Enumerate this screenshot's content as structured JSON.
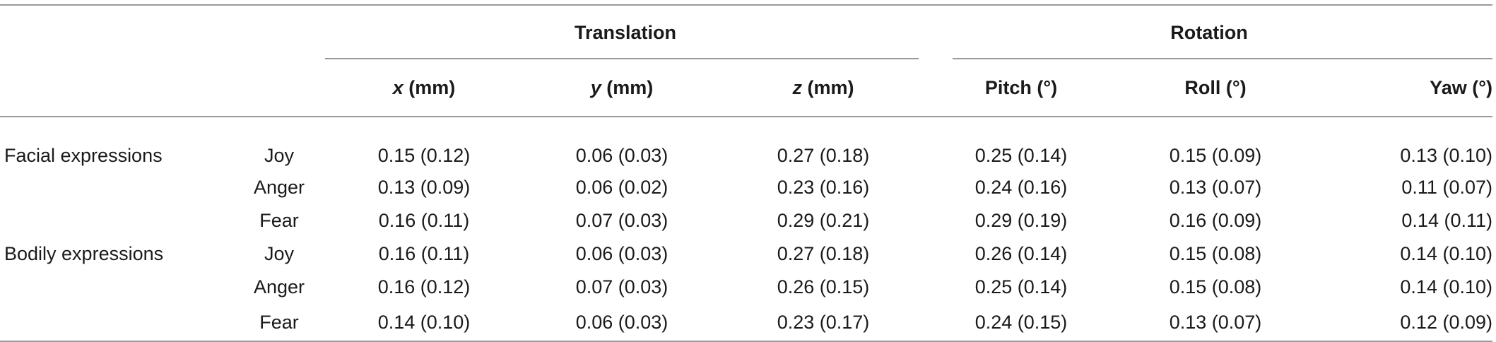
{
  "table": {
    "groups": {
      "translation": "Translation",
      "rotation": "Rotation"
    },
    "columns": [
      {
        "var": "x",
        "unit": " (mm)"
      },
      {
        "var": "y",
        "unit": " (mm)"
      },
      {
        "var": "z",
        "unit": " (mm)"
      },
      {
        "var": "",
        "unit": "Pitch (°)"
      },
      {
        "var": "",
        "unit": "Roll (°)"
      },
      {
        "var": "",
        "unit": "Yaw (°)"
      }
    ],
    "rows": [
      {
        "group": "Facial expressions",
        "emotion": "Joy",
        "values": [
          "0.15 (0.12)",
          "0.06 (0.03)",
          "0.27 (0.18)",
          "0.25 (0.14)",
          "0.15 (0.09)",
          "0.13 (0.10)"
        ]
      },
      {
        "group": "",
        "emotion": "Anger",
        "values": [
          "0.13 (0.09)",
          "0.06 (0.02)",
          "0.23 (0.16)",
          "0.24 (0.16)",
          "0.13 (0.07)",
          "0.11 (0.07)"
        ]
      },
      {
        "group": "",
        "emotion": "Fear",
        "values": [
          "0.16 (0.11)",
          "0.07 (0.03)",
          "0.29 (0.21)",
          "0.29 (0.19)",
          "0.16 (0.09)",
          "0.14 (0.11)"
        ]
      },
      {
        "group": "Bodily expressions",
        "emotion": "Joy",
        "values": [
          "0.16 (0.11)",
          "0.06 (0.03)",
          "0.27 (0.18)",
          "0.26 (0.14)",
          "0.15 (0.08)",
          "0.14 (0.10)"
        ]
      },
      {
        "group": "",
        "emotion": "Anger",
        "values": [
          "0.16 (0.12)",
          "0.07 (0.03)",
          "0.26 (0.15)",
          "0.25 (0.14)",
          "0.15 (0.08)",
          "0.14 (0.10)"
        ]
      },
      {
        "group": "",
        "emotion": "Fear",
        "values": [
          "0.14 (0.10)",
          "0.06 (0.03)",
          "0.23 (0.17)",
          "0.24 (0.15)",
          "0.13 (0.07)",
          "0.12 (0.09)"
        ]
      }
    ]
  }
}
